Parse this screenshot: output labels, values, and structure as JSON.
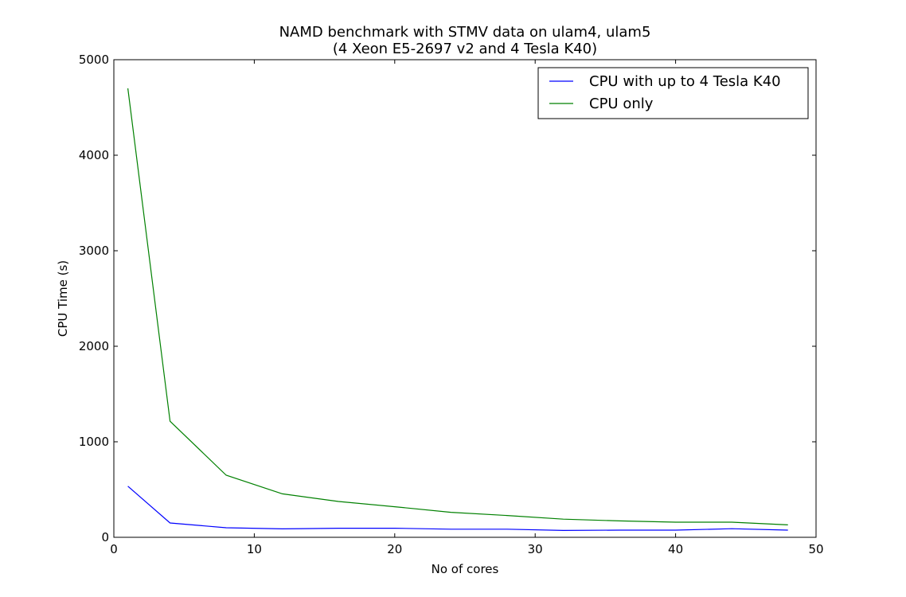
{
  "chart_data": {
    "type": "line",
    "title": "NAMD benchmark with STMV data on ulam4, ulam5",
    "subtitle": "(4 Xeon E5-2697 v2 and 4 Tesla K40)",
    "xlabel": "No of cores",
    "ylabel": "CPU Time (s)",
    "xlim": [
      0,
      50
    ],
    "ylim": [
      0,
      5000
    ],
    "xticks": [
      "0",
      "10",
      "20",
      "30",
      "40",
      "50"
    ],
    "yticks": [
      "0",
      "1000",
      "2000",
      "3000",
      "4000",
      "5000"
    ],
    "grid": false,
    "legend_position": "top-right",
    "series": [
      {
        "name": "CPU with up to 4 Tesla K40",
        "color": "#0000ff",
        "x": [
          1,
          4,
          8,
          12,
          16,
          20,
          24,
          28,
          32,
          36,
          40,
          44,
          48
        ],
        "y": [
          535,
          150,
          100,
          88,
          95,
          95,
          85,
          85,
          72,
          75,
          75,
          90,
          75
        ]
      },
      {
        "name": "CPU only",
        "color": "#008000",
        "x": [
          1,
          4,
          8,
          12,
          16,
          20,
          24,
          28,
          32,
          36,
          40,
          44,
          48
        ],
        "y": [
          4700,
          1215,
          650,
          455,
          375,
          320,
          262,
          228,
          190,
          172,
          158,
          158,
          130
        ]
      }
    ]
  }
}
